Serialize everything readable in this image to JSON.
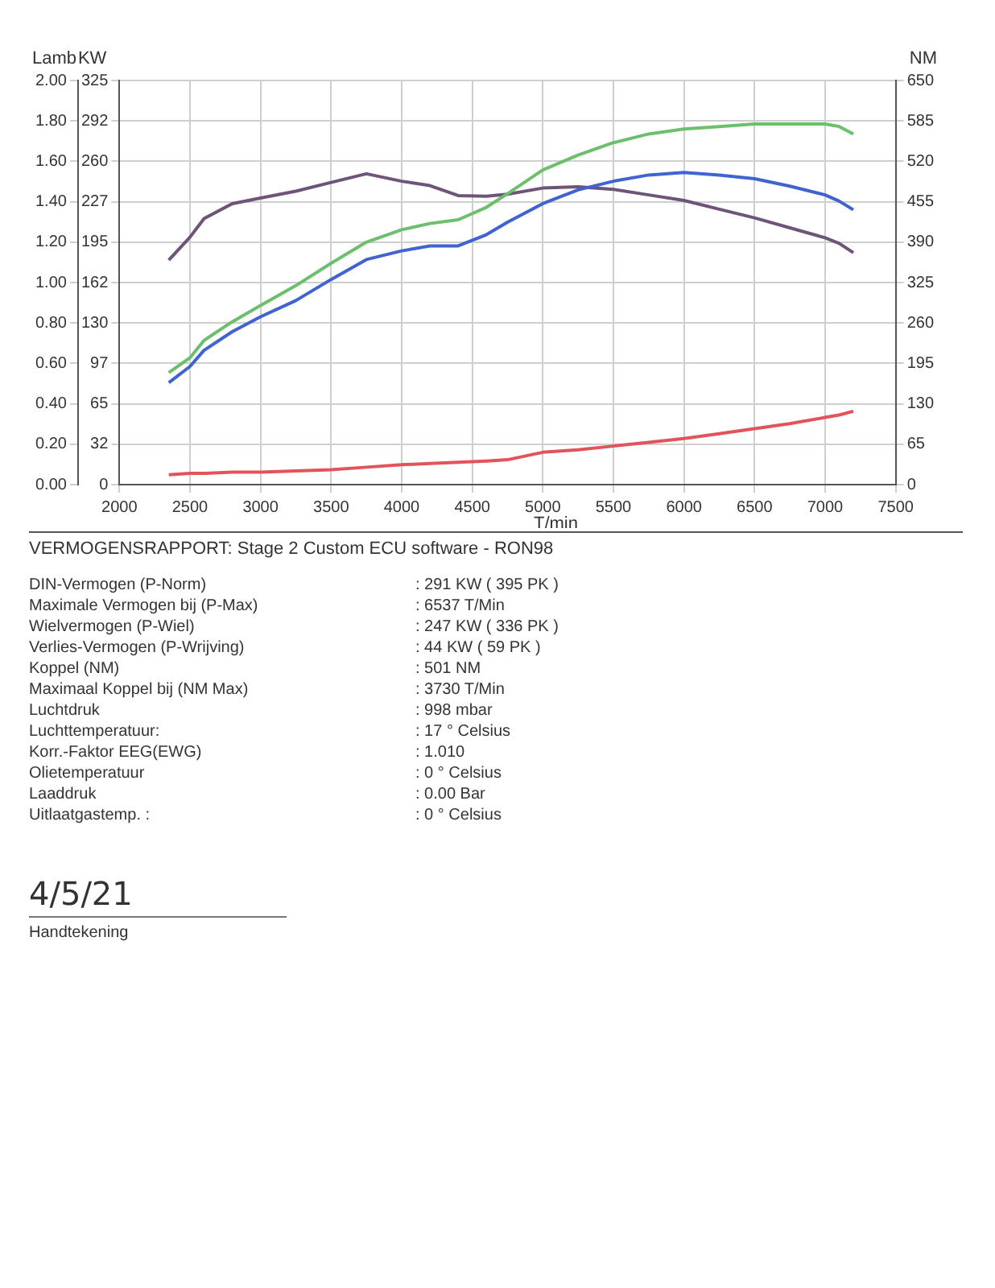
{
  "chart_data": {
    "type": "line",
    "title": "VERMOGENSRAPPORT: Stage 2 Custom ECU software - RON98",
    "xlabel": "T/min",
    "ylabel": "KW",
    "y2label": "NM",
    "y3label": "Lamb",
    "x": [
      2350,
      2500,
      2600,
      2800,
      3000,
      3250,
      3500,
      3750,
      4000,
      4200,
      4400,
      4600,
      4750,
      5000,
      5250,
      5500,
      5750,
      6000,
      6250,
      6500,
      6750,
      7000,
      7100,
      7200
    ],
    "series": [
      {
        "color": "#6cbf6c",
        "values": [
          90,
          102,
          116,
          131,
          144,
          160,
          178,
          195,
          205,
          210,
          213,
          223,
          234,
          253,
          265,
          275,
          282,
          286,
          288,
          290,
          290,
          290,
          288,
          282
        ]
      },
      {
        "color": "#3f63d0",
        "values": [
          82,
          95,
          108,
          123,
          135,
          148,
          165,
          181,
          188,
          192,
          192,
          201,
          211,
          226,
          237,
          244,
          249,
          251,
          249,
          246,
          240,
          233,
          228,
          221
        ]
      },
      {
        "color": "#6e5478",
        "axis": "y2",
        "values": [
          361,
          398,
          428,
          452,
          461,
          472,
          486,
          500,
          488,
          481,
          465,
          464,
          467,
          477,
          479,
          475,
          466,
          457,
          443,
          429,
          413,
          397,
          388,
          373
        ]
      },
      {
        "color": "#e2535c",
        "values": [
          8,
          9,
          9,
          10,
          10,
          11,
          12,
          14,
          16,
          17,
          18,
          19,
          20,
          26,
          28,
          31,
          34,
          37,
          41,
          45,
          49,
          54,
          56,
          59
        ]
      }
    ],
    "xlim": [
      2000,
      7500
    ],
    "xticks": [
      2000,
      2500,
      3000,
      3500,
      4000,
      4500,
      5000,
      5500,
      6000,
      6500,
      7000,
      7500
    ],
    "ylim": [
      0,
      325
    ],
    "yticks": [
      0,
      {
        "value": 32.5,
        "label": "32"
      },
      65,
      {
        "value": 97.5,
        "label": "97"
      },
      130,
      {
        "value": 162.5,
        "label": "162"
      },
      195,
      {
        "value": 227.5,
        "label": "227"
      },
      260,
      {
        "value": 292.5,
        "label": "292"
      },
      325
    ],
    "y2lim": [
      0,
      650
    ],
    "y2ticks": [
      0,
      65,
      130,
      195,
      260,
      325,
      390,
      455,
      520,
      585,
      650
    ],
    "y3lim": [
      0,
      2
    ],
    "y3ticks": [
      {
        "value": 0,
        "label": "0.00"
      },
      {
        "value": 0.2,
        "label": "0.20"
      },
      {
        "value": 0.4,
        "label": "0.40"
      },
      {
        "value": 0.6,
        "label": "0.60"
      },
      {
        "value": 0.8,
        "label": "0.80"
      },
      {
        "value": 1,
        "label": "1.00"
      },
      {
        "value": 1.2,
        "label": "1.20"
      },
      {
        "value": 1.4,
        "label": "1.40"
      },
      {
        "value": 1.6,
        "label": "1.60"
      },
      {
        "value": 1.8,
        "label": "1.80"
      },
      {
        "value": 2,
        "label": "2.00"
      }
    ],
    "grid": true,
    "legend": false,
    "marker": "none",
    "line_style": "solid",
    "annotations": [
      "DIN-Vermogen (P-Norm) : 291 KW ( 395 PK )",
      "Maximale Vermogen bij (P-Max) : 6537 T/Min",
      "Wielvermogen (P-Wiel) : 247 KW ( 336 PK )",
      "Verlies-Vermogen (P-Wrijving) : 44 KW ( 59 PK )",
      "Koppel (NM) : 501 NM",
      "Maximaal Koppel bij (NM Max) : 3730 T/Min",
      "Luchtdruk : 998 mbar",
      "Luchttemperatuur: : 17 ° Celsius",
      "Korr.-Faktor EEG(EWG) : 1.010",
      "Olietemperatuur : 0 ° Celsius",
      "Laaddruk : 0.00 Bar",
      "Uitlaatgastemp. : : 0 ° Celsius",
      "4/5/21",
      "Handtekening"
    ]
  }
}
